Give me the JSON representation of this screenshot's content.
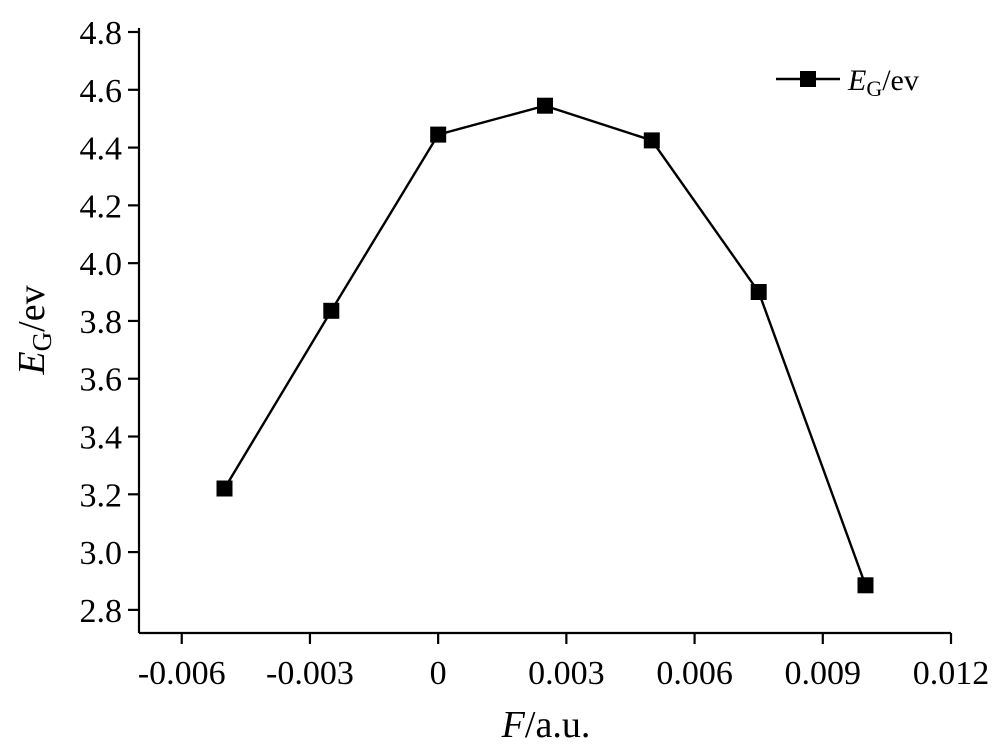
{
  "chart_data": {
    "type": "line",
    "xlabel": {
      "var": "F",
      "rest": "/a.u."
    },
    "ylabel": {
      "var": "E",
      "sub": "G",
      "rest": "/ev"
    },
    "xlim": [
      -0.007,
      0.012
    ],
    "ylim": [
      2.72,
      4.8
    ],
    "x_ticks": [
      -0.006,
      -0.003,
      0,
      0.003,
      0.006,
      0.009,
      0.012
    ],
    "x_tick_labels": [
      "-0.006",
      "-0.003",
      "0",
      "0.003",
      "0.006",
      "0.009",
      "0.012"
    ],
    "y_ticks": [
      2.8,
      3.0,
      3.2,
      3.4,
      3.6,
      3.8,
      4.0,
      4.2,
      4.4,
      4.6,
      4.8
    ],
    "y_tick_labels": [
      "2.8",
      "3.0",
      "3.2",
      "3.4",
      "3.6",
      "3.8",
      "4.0",
      "4.2",
      "4.4",
      "4.6",
      "4.8"
    ],
    "grid": false,
    "legend_position": "top-right",
    "series": [
      {
        "name": {
          "var": "E",
          "sub": "G",
          "rest": "/ev"
        },
        "marker": "square",
        "color": "#000000",
        "x": [
          -0.005,
          -0.0025,
          0,
          0.0025,
          0.005,
          0.0075,
          0.01
        ],
        "y": [
          3.22,
          3.835,
          4.445,
          4.545,
          4.425,
          3.9,
          2.885
        ]
      }
    ]
  }
}
